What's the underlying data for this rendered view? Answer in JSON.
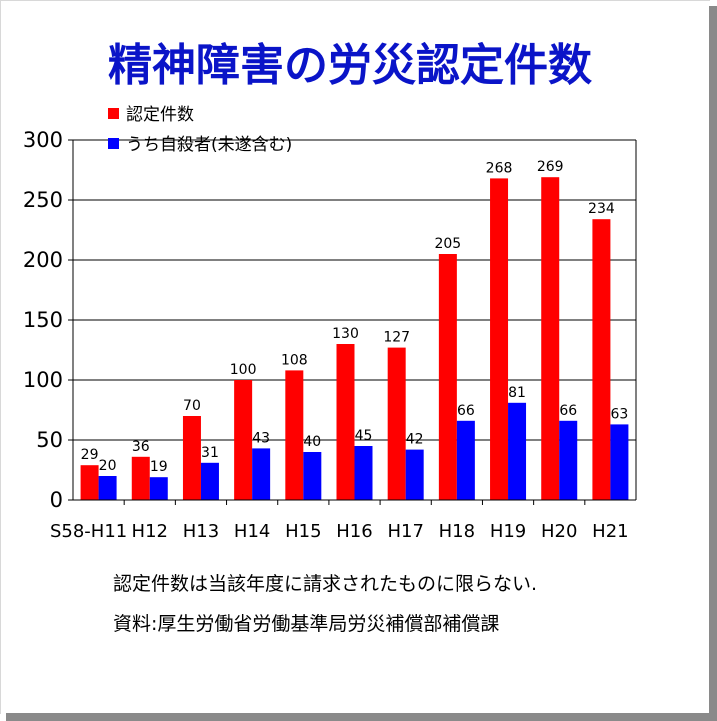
{
  "colors": {
    "title": "#0a14c8",
    "series_red": "#ff0000",
    "series_blue": "#0000ff",
    "axis": "#000000",
    "grid": "#000000"
  },
  "notes": {
    "line1": "認定件数は当該年度に請求されたものに限らない.",
    "line2": "資料:厚生労働省労働基準局労災補償部補償課"
  },
  "chart_data": {
    "type": "bar",
    "title": "精神障害の労災認定件数",
    "categories": [
      "S58-H11",
      "H12",
      "H13",
      "H14",
      "H15",
      "H16",
      "H17",
      "H18",
      "H19",
      "H20",
      "H21"
    ],
    "series": [
      {
        "name": "認定件数",
        "color": "#ff0000",
        "values": [
          29,
          36,
          70,
          100,
          108,
          130,
          127,
          205,
          268,
          269,
          234
        ]
      },
      {
        "name": "うち自殺者(未遂含む)",
        "color": "#0000ff",
        "values": [
          20,
          19,
          31,
          43,
          40,
          45,
          42,
          66,
          81,
          66,
          63
        ]
      }
    ],
    "ylim": [
      0,
      300
    ],
    "yticks": [
      0,
      50,
      100,
      150,
      200,
      250,
      300
    ],
    "grid": true,
    "legend": "top-left"
  }
}
